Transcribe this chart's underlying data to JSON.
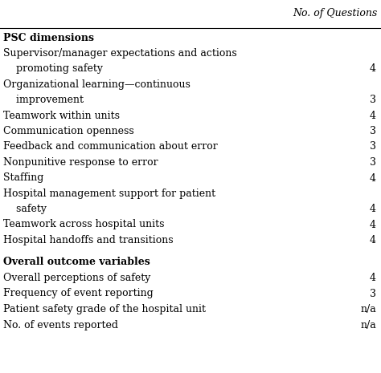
{
  "header": "No. of Questions",
  "section1_header": "PSC dimensions",
  "section2_header": "Overall outcome variables",
  "rows": [
    {
      "text1": "Supervisor/manager expectations and actions",
      "text2": "    promoting safety",
      "value": "4",
      "multiline": true
    },
    {
      "text1": "Organizational learning—continuous",
      "text2": "    improvement",
      "value": "3",
      "multiline": true
    },
    {
      "text1": "Teamwork within units",
      "text2": "",
      "value": "4",
      "multiline": false
    },
    {
      "text1": "Communication openness",
      "text2": "",
      "value": "3",
      "multiline": false
    },
    {
      "text1": "Feedback and communication about error",
      "text2": "",
      "value": "3",
      "multiline": false
    },
    {
      "text1": "Nonpunitive response to error",
      "text2": "",
      "value": "3",
      "multiline": false
    },
    {
      "text1": "Staffing",
      "text2": "",
      "value": "4",
      "multiline": false
    },
    {
      "text1": "Hospital management support for patient",
      "text2": "    safety",
      "value": "4",
      "multiline": true
    },
    {
      "text1": "Teamwork across hospital units",
      "text2": "",
      "value": "4",
      "multiline": false
    },
    {
      "text1": "Hospital handoffs and transitions",
      "text2": "",
      "value": "4",
      "multiline": false
    }
  ],
  "rows2": [
    {
      "text1": "Overall perceptions of safety",
      "value": "4"
    },
    {
      "text1": "Frequency of event reporting",
      "value": "3"
    },
    {
      "text1": "Patient safety grade of the hospital unit",
      "value": "n/a"
    },
    {
      "text1": "No. of events reported",
      "value": "n/a"
    }
  ],
  "bg_color": "#ffffff",
  "text_color": "#000000",
  "font_size": 9.0,
  "line_color": "#000000"
}
